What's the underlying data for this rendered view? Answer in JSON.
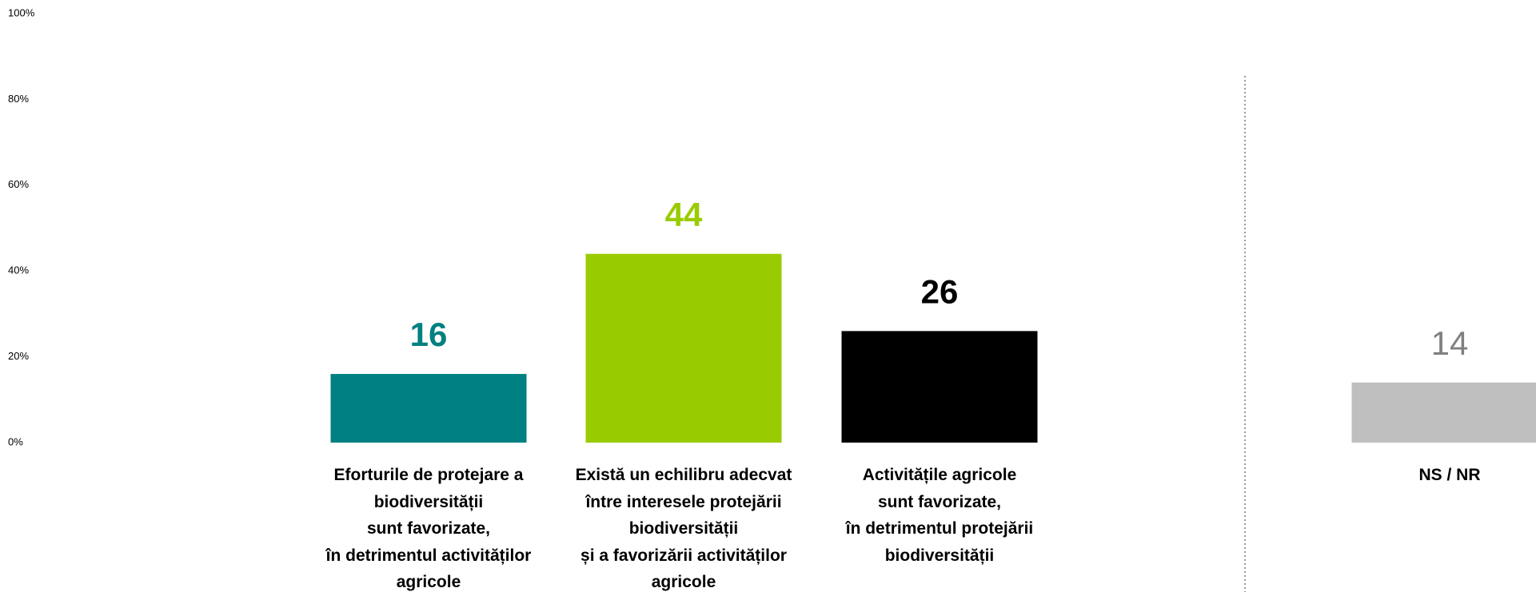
{
  "chart_data": {
    "type": "bar",
    "categories": [
      "Eforturile de protejare a\nbiodiversității\nsunt favorizate,\nîn detrimentul activităților\nagricole",
      "Există un echilibru adecvat\nîntre interesele protejării\nbiodiversității\nși a favorizării activităților\nagricole",
      "Activitățile agricole\nsunt favorizate,\nîn detrimentul protejării\nbiodiversității",
      "NS / NR"
    ],
    "values": [
      16,
      44,
      26,
      14
    ],
    "colors": [
      "#008080",
      "#99cc00",
      "#000000",
      "#bfbfbf"
    ],
    "label_colors": [
      "#008080",
      "#99cc00",
      "#000000",
      "#808080"
    ],
    "ylim": [
      0,
      100
    ],
    "yticks": [
      {
        "value": 0,
        "label": "0%"
      },
      {
        "value": 20,
        "label": "20%"
      },
      {
        "value": 40,
        "label": "40%"
      },
      {
        "value": 60,
        "label": "60%"
      },
      {
        "value": 80,
        "label": "80%"
      },
      {
        "value": 100,
        "label": "100%"
      }
    ],
    "grid": false
  }
}
